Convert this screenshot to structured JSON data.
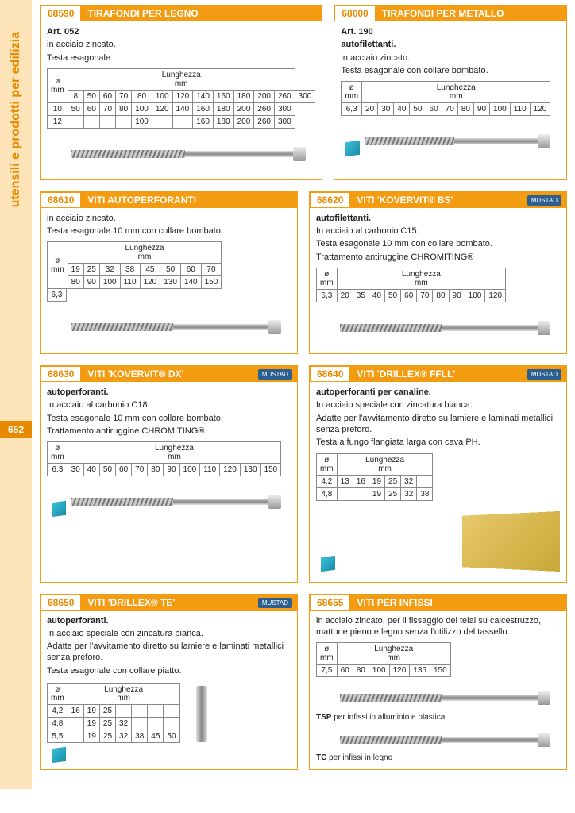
{
  "sidebar": {
    "label": "utensili e prodotti per edilizia",
    "page": "652"
  },
  "header_length": "Lunghezza",
  "mm": "mm",
  "dia": "ø",
  "brand": "MUSTAD",
  "p68590": {
    "code": "68590",
    "title": "TIRAFONDI PER LEGNO",
    "l1": "Art. 052",
    "l2": "in acciaio zincato.",
    "l3": "Testa esagonale.",
    "diams": [
      "8",
      "10",
      "12"
    ],
    "cols": [
      "50",
      "60",
      "70",
      "80",
      "100",
      "120",
      "140",
      "160",
      "180",
      "200",
      "260",
      "300"
    ],
    "r1": [
      "50",
      "60",
      "70",
      "80",
      "100",
      "120",
      "140",
      "160",
      "180",
      "200",
      "260",
      "300"
    ],
    "r2": [
      "50",
      "60",
      "70",
      "80",
      "100",
      "120",
      "140",
      "160",
      "180",
      "200",
      "260",
      "300"
    ],
    "r3": [
      "",
      "",
      "",
      "",
      "100",
      "",
      "",
      "160",
      "180",
      "200",
      "260",
      "300"
    ]
  },
  "p68600": {
    "code": "68600",
    "title": "TIRAFONDI PER METALLO",
    "l1": "Art. 190",
    "l2": "autofilettanti.",
    "l3": "in acciaio zincato.",
    "l4": "Testa esagonale con collare bombato.",
    "diam": "6,3",
    "cols": [
      "20",
      "30",
      "40",
      "50",
      "60",
      "70",
      "80",
      "90",
      "100",
      "110",
      "120"
    ]
  },
  "p68610": {
    "code": "68610",
    "title": "VITI AUTOPERFORANTI",
    "l1": "in acciaio zincato.",
    "l2": "Testa esagonale 10 mm con collare bombato.",
    "diam": "6,3",
    "r1": [
      "19",
      "25",
      "32",
      "38",
      "45",
      "50",
      "60",
      "70"
    ],
    "r2": [
      "80",
      "90",
      "100",
      "110",
      "120",
      "130",
      "140",
      "150"
    ]
  },
  "p68620": {
    "code": "68620",
    "title": "VITI 'KOVERVIT® BS'",
    "l1": "autofilettanti.",
    "l2": "In acciaio al carbonio C15.",
    "l3": "Testa esagonale 10 mm con collare bombato.",
    "l4": "Trattamento antiruggine CHROMITING®",
    "diam": "6,3",
    "cols": [
      "20",
      "35",
      "40",
      "50",
      "60",
      "70",
      "80",
      "90",
      "100",
      "120"
    ]
  },
  "p68630": {
    "code": "68630",
    "title": "VITI 'KOVERVIT® DX'",
    "l1": "autoperforanti.",
    "l2": "In acciaio al carbonio C18.",
    "l3": "Testa esagonale 10 mm con collare bombato.",
    "l4": "Trattamento antiruggine CHROMITING®",
    "diam": "6,3",
    "cols": [
      "30",
      "40",
      "50",
      "60",
      "70",
      "80",
      "90",
      "100",
      "110",
      "120",
      "130",
      "150"
    ]
  },
  "p68640": {
    "code": "68640",
    "title": "VITI 'DRILLEX® FFLL'",
    "l1": "autoperforanti per canaline.",
    "l2": "In acciaio speciale con zincatura bianca.",
    "l3": "Adatte per l'avvitamento diretto su lamiere e laminati metallici senza preforo.",
    "l4": "Testa a fungo flangiata larga con cava PH.",
    "d1": "4,2",
    "d2": "4,8",
    "r1": [
      "13",
      "16",
      "19",
      "25",
      "32",
      ""
    ],
    "r2": [
      "",
      "",
      "19",
      "25",
      "32",
      "38"
    ]
  },
  "p68650": {
    "code": "68650",
    "title": "VITI 'DRILLEX® TE'",
    "l1": "autoperforanti.",
    "l2": "In acciaio speciale con zincatura bianca.",
    "l3": "Adatte per l'avvitamento diretto su lamiere e laminati metallici senza preforo.",
    "l4": "Testa esagonale con collare piatto.",
    "d1": "4,2",
    "d2": "4,8",
    "d3": "5,5",
    "r1": [
      "16",
      "19",
      "25",
      "",
      "",
      "",
      ""
    ],
    "r2": [
      "",
      "19",
      "25",
      "32",
      "",
      "",
      ""
    ],
    "r3": [
      "",
      "19",
      "25",
      "32",
      "38",
      "45",
      "50"
    ]
  },
  "p68655": {
    "code": "68655",
    "title": "VITI PER INFISSI",
    "l1": "in acciaio zincato, per il fissaggio dei telai su calcestruzzo, mattone pieno e legno senza l'utilizzo del tassello.",
    "diam": "7,5",
    "cols": [
      "60",
      "80",
      "100",
      "120",
      "135",
      "150"
    ],
    "f1a": "TSP",
    "f1b": " per infissi in alluminio e plastica",
    "f2a": "TC",
    "f2b": " per infissi in legno"
  }
}
